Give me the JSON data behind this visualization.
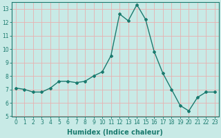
{
  "x": [
    0,
    1,
    2,
    3,
    4,
    5,
    6,
    7,
    8,
    9,
    10,
    11,
    12,
    13,
    14,
    15,
    16,
    17,
    18,
    19,
    20,
    21,
    22,
    23
  ],
  "y": [
    7.1,
    7.0,
    6.8,
    6.8,
    7.1,
    7.6,
    7.6,
    7.5,
    7.6,
    8.0,
    8.3,
    9.5,
    12.6,
    12.1,
    13.3,
    12.2,
    9.8,
    8.2,
    7.0,
    5.8,
    5.4,
    6.4,
    6.8,
    6.8
  ],
  "line_color": "#1a7a6e",
  "marker": "D",
  "marker_size": 2.0,
  "line_width": 1.0,
  "bg_color": "#c8eae6",
  "grid_color": "#e8b0b0",
  "xlabel": "Humidex (Indice chaleur)",
  "xlim": [
    -0.5,
    23.5
  ],
  "ylim": [
    5,
    13.5
  ],
  "yticks": [
    5,
    6,
    7,
    8,
    9,
    10,
    11,
    12,
    13
  ],
  "xticks": [
    0,
    1,
    2,
    3,
    4,
    5,
    6,
    7,
    8,
    9,
    10,
    11,
    12,
    13,
    14,
    15,
    16,
    17,
    18,
    19,
    20,
    21,
    22,
    23
  ],
  "tick_label_fontsize": 5.5,
  "xlabel_fontsize": 7,
  "tick_color": "#1a7a6e",
  "axis_color": "#1a7a6e"
}
